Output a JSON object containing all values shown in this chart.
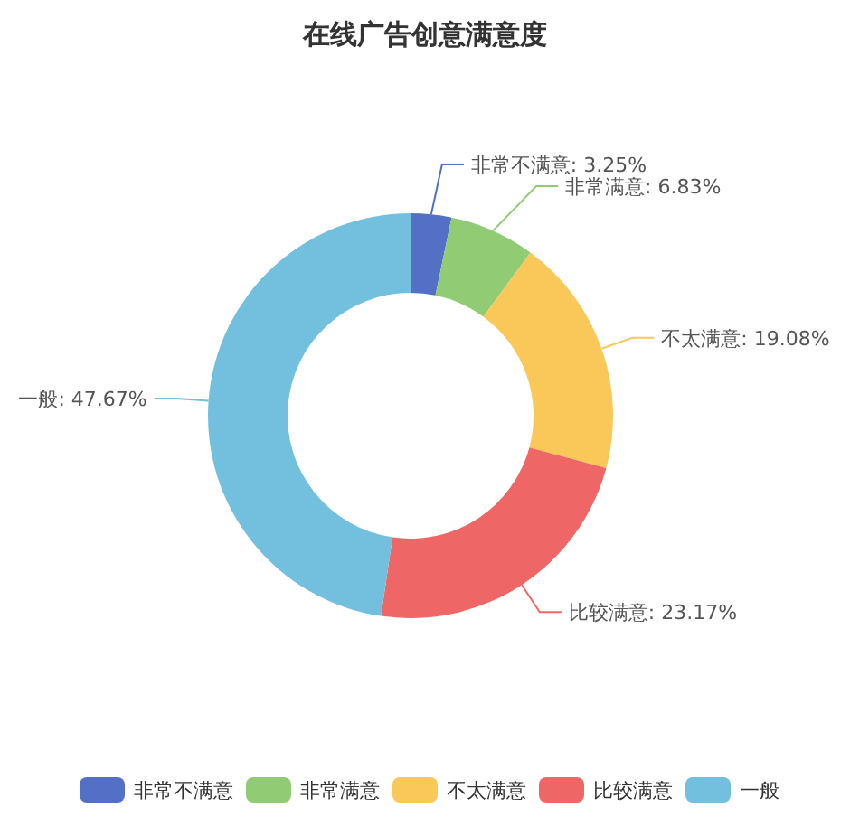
{
  "chart_data": {
    "type": "donut",
    "title": "在线广告创意满意度",
    "categories": [
      "非常不满意",
      "非常满意",
      "不太满意",
      "比较满意",
      "一般"
    ],
    "values": [
      3.25,
      6.83,
      19.08,
      23.17,
      47.67
    ],
    "value_labels": [
      "非常不满意: 3.25%",
      "非常满意: 6.83%",
      "不太满意: 19.08%",
      "比较满意: 23.17%",
      "一般: 47.67%"
    ],
    "colors": [
      "#5470c6",
      "#91cc75",
      "#fac858",
      "#ee6666",
      "#73c0de"
    ],
    "legend": "bottom"
  }
}
